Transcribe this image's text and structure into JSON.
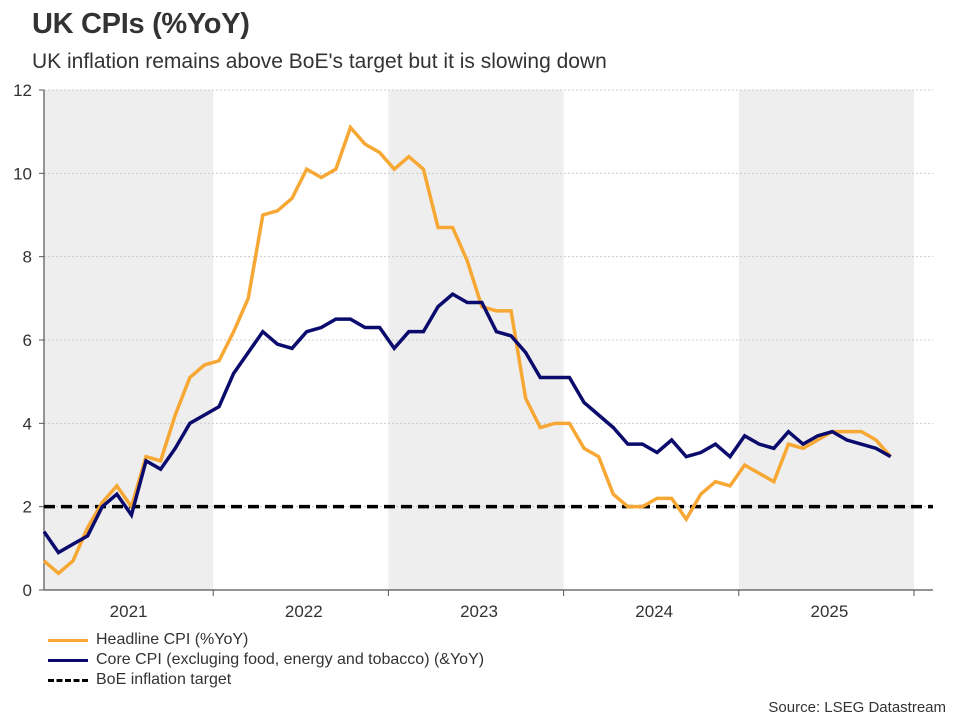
{
  "title": "UK CPIs (%YoY)",
  "subtitle": "UK inflation remains above BoE's target but it is slowing down",
  "source": "Source: LSEG Datastream",
  "colors": {
    "headline": "#F7A834",
    "core": "#0B0B6E",
    "target": "#000000",
    "band": "#EEEEEE",
    "grid": "#CCCCCC",
    "axis": "#555555"
  },
  "legend": [
    {
      "label": "Headline CPI (%YoY)",
      "style": "solid",
      "color": "#F7A834"
    },
    {
      "label": "Core CPI (excluging food, energy and tobacco) (&YoY)",
      "style": "solid",
      "color": "#0B0B6E"
    },
    {
      "label": "BoE inflation target",
      "style": "dashed",
      "color": "#000000"
    }
  ],
  "chart_data": {
    "type": "line",
    "title": "UK CPIs (%YoY)",
    "subtitle": "UK inflation remains above BoE's target but it is slowing down",
    "xlabel": "",
    "ylabel": "",
    "ylim": [
      0,
      12
    ],
    "yticks": [
      0,
      2,
      4,
      6,
      8,
      10,
      12
    ],
    "grid": true,
    "legend_position": "bottom-left",
    "x_period": "monthly, Jan 2021 - Nov 2025",
    "year_labels": [
      "2021",
      "2022",
      "2023",
      "2024",
      "2025"
    ],
    "shaded_years": [
      "2021",
      "2023",
      "2025"
    ],
    "series": [
      {
        "name": "Headline CPI (%YoY)",
        "values": [
          0.7,
          0.4,
          0.7,
          1.5,
          2.1,
          2.5,
          2.0,
          3.2,
          3.1,
          4.2,
          5.1,
          5.4,
          5.5,
          6.2,
          7.0,
          9.0,
          9.1,
          9.4,
          10.1,
          9.9,
          10.1,
          11.1,
          10.7,
          10.5,
          10.1,
          10.4,
          10.1,
          8.7,
          8.7,
          7.9,
          6.8,
          6.7,
          6.7,
          4.6,
          3.9,
          4.0,
          4.0,
          3.4,
          3.2,
          2.3,
          2.0,
          2.0,
          2.2,
          2.2,
          1.7,
          2.3,
          2.6,
          2.5,
          3.0,
          2.8,
          2.6,
          3.5,
          3.4,
          3.6,
          3.8,
          3.8,
          3.8,
          3.6,
          3.2
        ]
      },
      {
        "name": "Core CPI (excluging food, energy and tobacco) (&YoY)",
        "values": [
          1.4,
          0.9,
          1.1,
          1.3,
          2.0,
          2.3,
          1.8,
          3.1,
          2.9,
          3.4,
          4.0,
          4.2,
          4.4,
          5.2,
          5.7,
          6.2,
          5.9,
          5.8,
          6.2,
          6.3,
          6.5,
          6.5,
          6.3,
          6.3,
          5.8,
          6.2,
          6.2,
          6.8,
          7.1,
          6.9,
          6.9,
          6.2,
          6.1,
          5.7,
          5.1,
          5.1,
          5.1,
          4.5,
          4.2,
          3.9,
          3.5,
          3.5,
          3.3,
          3.6,
          3.2,
          3.3,
          3.5,
          3.2,
          3.7,
          3.5,
          3.4,
          3.8,
          3.5,
          3.7,
          3.8,
          3.6,
          3.5,
          3.4,
          3.2
        ]
      },
      {
        "name": "BoE inflation target",
        "constant": 2.0
      }
    ]
  }
}
